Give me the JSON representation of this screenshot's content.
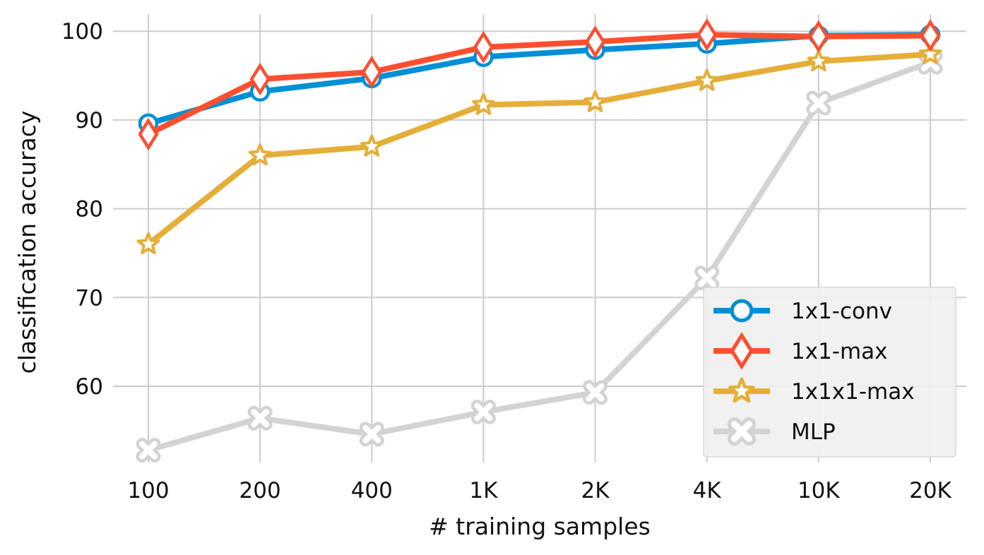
{
  "chart_data": {
    "type": "line",
    "title": "",
    "xlabel": "# training samples",
    "ylabel": "classification accuracy",
    "categories": [
      "100",
      "200",
      "400",
      "1K",
      "2K",
      "4K",
      "10K",
      "20K"
    ],
    "yticks": [
      60,
      70,
      80,
      90,
      100
    ],
    "ylim": [
      51,
      102
    ],
    "grid": true,
    "legend_position": "bottom-right",
    "series": [
      {
        "name": "1x1-conv",
        "color": "#008fd5",
        "marker": "circle",
        "values": [
          89.6,
          93.2,
          94.7,
          97.1,
          97.9,
          98.6,
          99.5,
          99.6
        ]
      },
      {
        "name": "1x1-max",
        "color": "#fc4f30",
        "marker": "thin-diamond",
        "values": [
          88.4,
          94.6,
          95.4,
          98.2,
          98.8,
          99.6,
          99.4,
          99.5
        ]
      },
      {
        "name": "1x1x1-max",
        "color": "#e5ae38",
        "marker": "star",
        "values": [
          76.0,
          86.0,
          87.0,
          91.7,
          92.0,
          94.4,
          96.6,
          97.4
        ]
      },
      {
        "name": "MLP",
        "color": "#d3d3d3",
        "marker": "x",
        "values": [
          52.8,
          56.4,
          54.6,
          57.1,
          59.3,
          72.2,
          91.9,
          96.5
        ]
      }
    ]
  }
}
